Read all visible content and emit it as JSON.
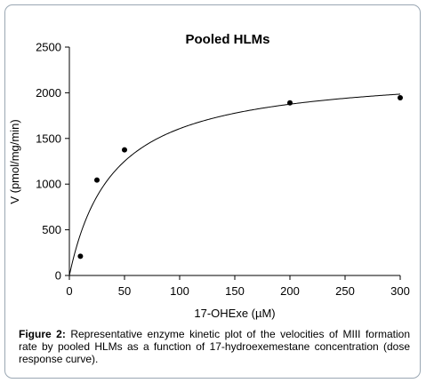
{
  "chart_data": {
    "type": "scatter",
    "title": "Pooled HLMs",
    "xlabel": "17-OHExe (µM)",
    "ylabel": "V (pmol/mg/min)",
    "xlim": [
      0,
      300
    ],
    "ylim": [
      0,
      2500
    ],
    "xticks": [
      "0",
      "50",
      "100",
      "150",
      "200",
      "250",
      "300"
    ],
    "yticks": [
      "0",
      "500",
      "1000",
      "1500",
      "2000",
      "2500"
    ],
    "points": [
      {
        "x": 10,
        "y": 210
      },
      {
        "x": 25,
        "y": 1045
      },
      {
        "x": 50,
        "y": 1375
      },
      {
        "x": 200,
        "y": 1890
      },
      {
        "x": 300,
        "y": 1945
      }
    ],
    "fit_curve": {
      "model": "michaelis-menten",
      "vmax": 2250,
      "km": 40
    },
    "grid": false,
    "legend": false
  },
  "caption": {
    "label": "Figure 2:",
    "text": "Representative enzyme kinetic plot of the velocities of MIII formation rate by pooled HLMs as a function of 17-hydroexemestane concentration (dose response curve)."
  }
}
